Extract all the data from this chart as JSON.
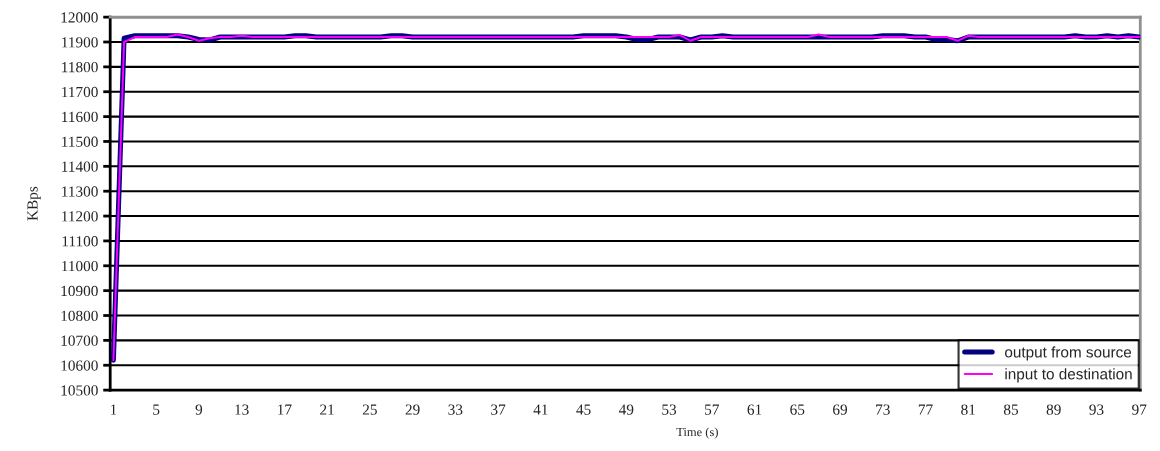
{
  "chart_data": {
    "type": "line",
    "xlabel": "Time (s)",
    "ylabel": "KBps",
    "categories": [
      "1",
      null,
      null,
      null,
      "5",
      null,
      null,
      null,
      "9",
      null,
      null,
      null,
      "13",
      null,
      null,
      null,
      "17",
      null,
      null,
      null,
      "21",
      null,
      null,
      null,
      "25",
      null,
      null,
      null,
      "29",
      null,
      null,
      null,
      "33",
      null,
      null,
      null,
      "37",
      null,
      null,
      null,
      "41",
      null,
      null,
      null,
      "45",
      null,
      null,
      null,
      "49",
      null,
      null,
      null,
      "53",
      null,
      null,
      null,
      "57",
      null,
      null,
      null,
      "61",
      null,
      null,
      null,
      "65",
      null,
      null,
      null,
      "69",
      null,
      null,
      null,
      "73",
      null,
      null,
      null,
      "77",
      null,
      null,
      null,
      "81",
      null,
      null,
      null,
      "85",
      null,
      null,
      null,
      "89",
      null,
      null,
      null,
      "93",
      null,
      null,
      null,
      "97"
    ],
    "series": [
      {
        "name": "output from source",
        "color": "#000080",
        "values": [
          10620,
          11915,
          11925,
          11925,
          11925,
          11925,
          11925,
          11920,
          11910,
          11908,
          11920,
          11920,
          11920,
          11920,
          11920,
          11920,
          11920,
          11925,
          11925,
          11920,
          11920,
          11920,
          11920,
          11920,
          11920,
          11920,
          11925,
          11925,
          11920,
          11920,
          11920,
          11920,
          11920,
          11920,
          11920,
          11920,
          11920,
          11920,
          11920,
          11920,
          11920,
          11920,
          11920,
          11920,
          11925,
          11925,
          11925,
          11925,
          11920,
          11910,
          11910,
          11920,
          11920,
          11920,
          11908,
          11920,
          11920,
          11925,
          11920,
          11920,
          11920,
          11920,
          11920,
          11920,
          11920,
          11920,
          11920,
          11920,
          11920,
          11920,
          11920,
          11920,
          11925,
          11925,
          11925,
          11920,
          11920,
          11910,
          11910,
          11905,
          11920,
          11920,
          11920,
          11920,
          11920,
          11920,
          11920,
          11920,
          11920,
          11920,
          11925,
          11920,
          11920,
          11925,
          11920,
          11925,
          11920
        ]
      },
      {
        "name": "input to destination",
        "color": "#ff00ff",
        "values": [
          10620,
          11900,
          11920,
          11920,
          11920,
          11920,
          11930,
          11920,
          11905,
          11915,
          11920,
          11920,
          11925,
          11920,
          11920,
          11920,
          11920,
          11920,
          11920,
          11920,
          11920,
          11920,
          11920,
          11920,
          11920,
          11920,
          11920,
          11920,
          11920,
          11920,
          11920,
          11920,
          11920,
          11920,
          11920,
          11920,
          11920,
          11920,
          11920,
          11920,
          11920,
          11920,
          11920,
          11920,
          11920,
          11920,
          11920,
          11920,
          11920,
          11920,
          11920,
          11920,
          11920,
          11928,
          11905,
          11920,
          11920,
          11920,
          11920,
          11920,
          11920,
          11920,
          11920,
          11920,
          11920,
          11920,
          11930,
          11920,
          11920,
          11920,
          11920,
          11920,
          11920,
          11920,
          11920,
          11920,
          11920,
          11920,
          11920,
          11905,
          11925,
          11920,
          11920,
          11920,
          11920,
          11920,
          11920,
          11920,
          11920,
          11920,
          11920,
          11920,
          11920,
          11920,
          11920,
          11920,
          11920
        ]
      }
    ],
    "ylim": [
      10500,
      12000
    ],
    "yticks": [
      10500,
      10600,
      10700,
      10800,
      10900,
      11000,
      11100,
      11200,
      11300,
      11400,
      11500,
      11600,
      11700,
      11800,
      11900,
      12000
    ],
    "grid": "y",
    "legend": "bottom right",
    "marker": "none",
    "line_style": "solid"
  }
}
